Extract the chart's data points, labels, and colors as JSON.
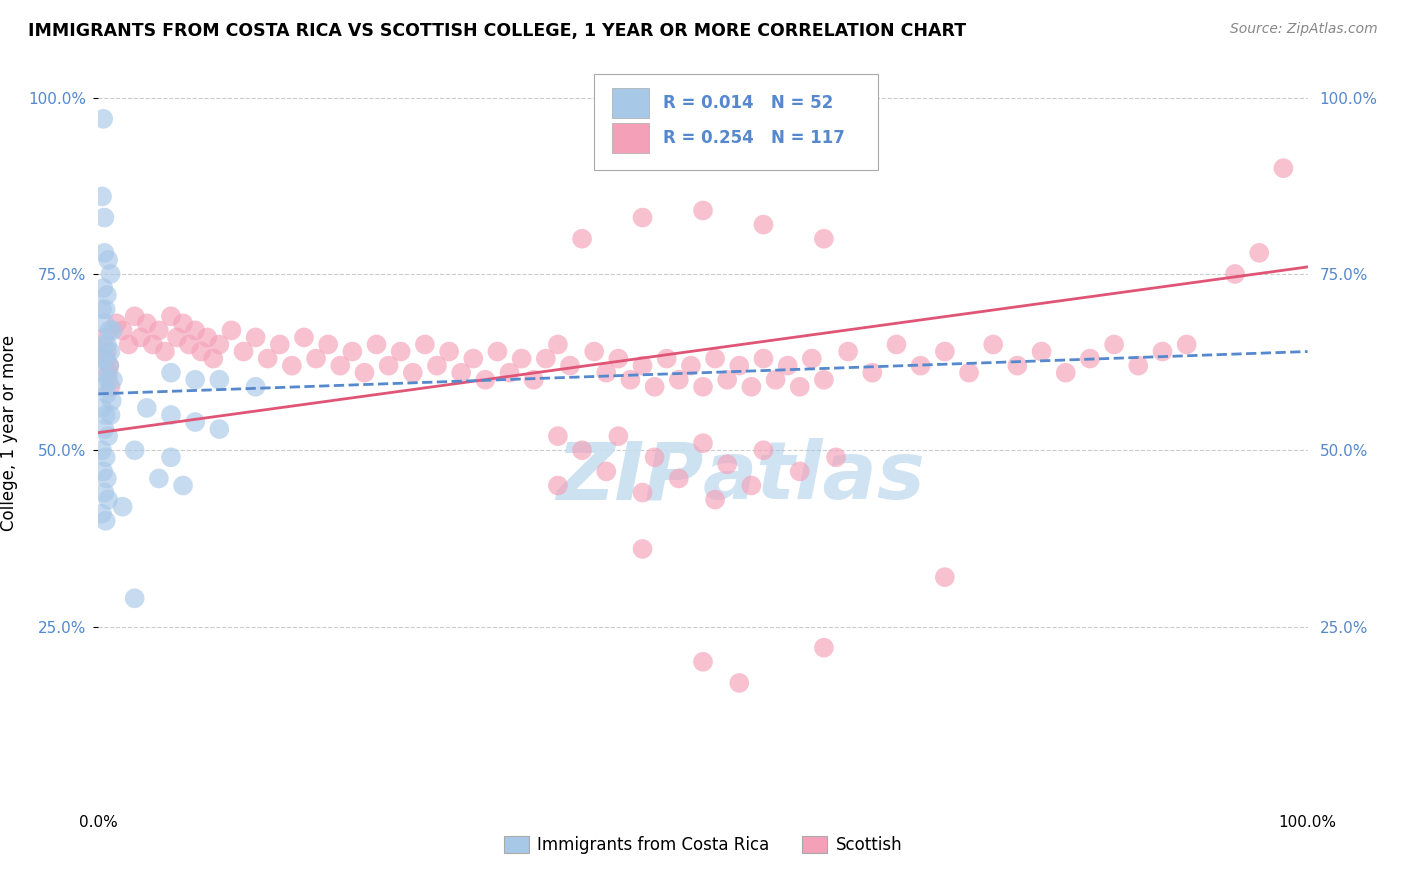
{
  "title": "IMMIGRANTS FROM COSTA RICA VS SCOTTISH COLLEGE, 1 YEAR OR MORE CORRELATION CHART",
  "source": "Source: ZipAtlas.com",
  "ylabel": "College, 1 year or more",
  "xlim": [
    0.0,
    1.0
  ],
  "ylim": [
    0.0,
    1.05
  ],
  "xtick_vals": [
    0.0,
    1.0
  ],
  "xtick_labels": [
    "0.0%",
    "100.0%"
  ],
  "ytick_positions": [
    0.25,
    0.5,
    0.75,
    1.0
  ],
  "ytick_labels": [
    "25.0%",
    "50.0%",
    "75.0%",
    "100.0%"
  ],
  "legend_blue_label": "Immigrants from Costa Rica",
  "legend_pink_label": "Scottish",
  "R_blue": 0.014,
  "N_blue": 52,
  "R_pink": 0.254,
  "N_pink": 117,
  "blue_color": "#a8c8e8",
  "pink_color": "#f4a0b8",
  "blue_line_color": "#5588cc",
  "pink_line_color": "#e05575",
  "tick_color": "#5588cc",
  "watermark_color": "#c8dff0",
  "background_color": "#ffffff",
  "grid_color": "#cccccc",
  "blue_scatter": [
    [
      0.004,
      0.97
    ],
    [
      0.003,
      0.86
    ],
    [
      0.005,
      0.83
    ],
    [
      0.005,
      0.78
    ],
    [
      0.008,
      0.77
    ],
    [
      0.01,
      0.75
    ],
    [
      0.004,
      0.73
    ],
    [
      0.007,
      0.72
    ],
    [
      0.003,
      0.7
    ],
    [
      0.006,
      0.7
    ],
    [
      0.005,
      0.68
    ],
    [
      0.009,
      0.67
    ],
    [
      0.012,
      0.67
    ],
    [
      0.004,
      0.65
    ],
    [
      0.007,
      0.65
    ],
    [
      0.01,
      0.64
    ],
    [
      0.003,
      0.63
    ],
    [
      0.006,
      0.63
    ],
    [
      0.009,
      0.62
    ],
    [
      0.005,
      0.61
    ],
    [
      0.008,
      0.6
    ],
    [
      0.012,
      0.6
    ],
    [
      0.004,
      0.59
    ],
    [
      0.007,
      0.58
    ],
    [
      0.011,
      0.57
    ],
    [
      0.003,
      0.56
    ],
    [
      0.006,
      0.55
    ],
    [
      0.01,
      0.55
    ],
    [
      0.005,
      0.53
    ],
    [
      0.008,
      0.52
    ],
    [
      0.003,
      0.5
    ],
    [
      0.006,
      0.49
    ],
    [
      0.004,
      0.47
    ],
    [
      0.007,
      0.46
    ],
    [
      0.005,
      0.44
    ],
    [
      0.008,
      0.43
    ],
    [
      0.003,
      0.41
    ],
    [
      0.006,
      0.4
    ],
    [
      0.06,
      0.61
    ],
    [
      0.08,
      0.6
    ],
    [
      0.1,
      0.6
    ],
    [
      0.13,
      0.59
    ],
    [
      0.04,
      0.56
    ],
    [
      0.06,
      0.55
    ],
    [
      0.08,
      0.54
    ],
    [
      0.1,
      0.53
    ],
    [
      0.03,
      0.5
    ],
    [
      0.06,
      0.49
    ],
    [
      0.05,
      0.46
    ],
    [
      0.07,
      0.45
    ],
    [
      0.02,
      0.42
    ],
    [
      0.03,
      0.29
    ]
  ],
  "pink_scatter": [
    [
      0.005,
      0.66
    ],
    [
      0.007,
      0.64
    ],
    [
      0.009,
      0.62
    ],
    [
      0.006,
      0.63
    ],
    [
      0.008,
      0.61
    ],
    [
      0.01,
      0.59
    ],
    [
      0.015,
      0.68
    ],
    [
      0.02,
      0.67
    ],
    [
      0.025,
      0.65
    ],
    [
      0.03,
      0.69
    ],
    [
      0.035,
      0.66
    ],
    [
      0.04,
      0.68
    ],
    [
      0.045,
      0.65
    ],
    [
      0.05,
      0.67
    ],
    [
      0.055,
      0.64
    ],
    [
      0.06,
      0.69
    ],
    [
      0.065,
      0.66
    ],
    [
      0.07,
      0.68
    ],
    [
      0.075,
      0.65
    ],
    [
      0.08,
      0.67
    ],
    [
      0.085,
      0.64
    ],
    [
      0.09,
      0.66
    ],
    [
      0.095,
      0.63
    ],
    [
      0.1,
      0.65
    ],
    [
      0.11,
      0.67
    ],
    [
      0.12,
      0.64
    ],
    [
      0.13,
      0.66
    ],
    [
      0.14,
      0.63
    ],
    [
      0.15,
      0.65
    ],
    [
      0.16,
      0.62
    ],
    [
      0.17,
      0.66
    ],
    [
      0.18,
      0.63
    ],
    [
      0.19,
      0.65
    ],
    [
      0.2,
      0.62
    ],
    [
      0.21,
      0.64
    ],
    [
      0.22,
      0.61
    ],
    [
      0.23,
      0.65
    ],
    [
      0.24,
      0.62
    ],
    [
      0.25,
      0.64
    ],
    [
      0.26,
      0.61
    ],
    [
      0.27,
      0.65
    ],
    [
      0.28,
      0.62
    ],
    [
      0.29,
      0.64
    ],
    [
      0.3,
      0.61
    ],
    [
      0.31,
      0.63
    ],
    [
      0.32,
      0.6
    ],
    [
      0.33,
      0.64
    ],
    [
      0.34,
      0.61
    ],
    [
      0.35,
      0.63
    ],
    [
      0.36,
      0.6
    ],
    [
      0.4,
      0.8
    ],
    [
      0.45,
      0.83
    ],
    [
      0.5,
      0.84
    ],
    [
      0.55,
      0.82
    ],
    [
      0.6,
      0.8
    ],
    [
      0.37,
      0.63
    ],
    [
      0.38,
      0.65
    ],
    [
      0.39,
      0.62
    ],
    [
      0.41,
      0.64
    ],
    [
      0.42,
      0.61
    ],
    [
      0.43,
      0.63
    ],
    [
      0.44,
      0.6
    ],
    [
      0.45,
      0.62
    ],
    [
      0.46,
      0.59
    ],
    [
      0.47,
      0.63
    ],
    [
      0.48,
      0.6
    ],
    [
      0.49,
      0.62
    ],
    [
      0.5,
      0.59
    ],
    [
      0.51,
      0.63
    ],
    [
      0.52,
      0.6
    ],
    [
      0.53,
      0.62
    ],
    [
      0.54,
      0.59
    ],
    [
      0.55,
      0.63
    ],
    [
      0.56,
      0.6
    ],
    [
      0.57,
      0.62
    ],
    [
      0.58,
      0.59
    ],
    [
      0.59,
      0.63
    ],
    [
      0.6,
      0.6
    ],
    [
      0.62,
      0.64
    ],
    [
      0.64,
      0.61
    ],
    [
      0.66,
      0.65
    ],
    [
      0.68,
      0.62
    ],
    [
      0.7,
      0.64
    ],
    [
      0.72,
      0.61
    ],
    [
      0.74,
      0.65
    ],
    [
      0.76,
      0.62
    ],
    [
      0.78,
      0.64
    ],
    [
      0.8,
      0.61
    ],
    [
      0.38,
      0.52
    ],
    [
      0.4,
      0.5
    ],
    [
      0.43,
      0.52
    ],
    [
      0.46,
      0.49
    ],
    [
      0.5,
      0.51
    ],
    [
      0.52,
      0.48
    ],
    [
      0.55,
      0.5
    ],
    [
      0.58,
      0.47
    ],
    [
      0.61,
      0.49
    ],
    [
      0.38,
      0.45
    ],
    [
      0.42,
      0.47
    ],
    [
      0.45,
      0.44
    ],
    [
      0.48,
      0.46
    ],
    [
      0.51,
      0.43
    ],
    [
      0.54,
      0.45
    ],
    [
      0.45,
      0.36
    ],
    [
      0.5,
      0.2
    ],
    [
      0.53,
      0.17
    ],
    [
      0.6,
      0.22
    ],
    [
      0.7,
      0.32
    ],
    [
      0.82,
      0.63
    ],
    [
      0.84,
      0.65
    ],
    [
      0.86,
      0.62
    ],
    [
      0.88,
      0.64
    ],
    [
      0.9,
      0.65
    ],
    [
      0.94,
      0.75
    ],
    [
      0.96,
      0.78
    ],
    [
      0.98,
      0.9
    ]
  ],
  "blue_line": [
    [
      0.0,
      0.58
    ],
    [
      1.0,
      0.64
    ]
  ],
  "pink_line": [
    [
      0.0,
      0.525
    ],
    [
      1.0,
      0.76
    ]
  ]
}
